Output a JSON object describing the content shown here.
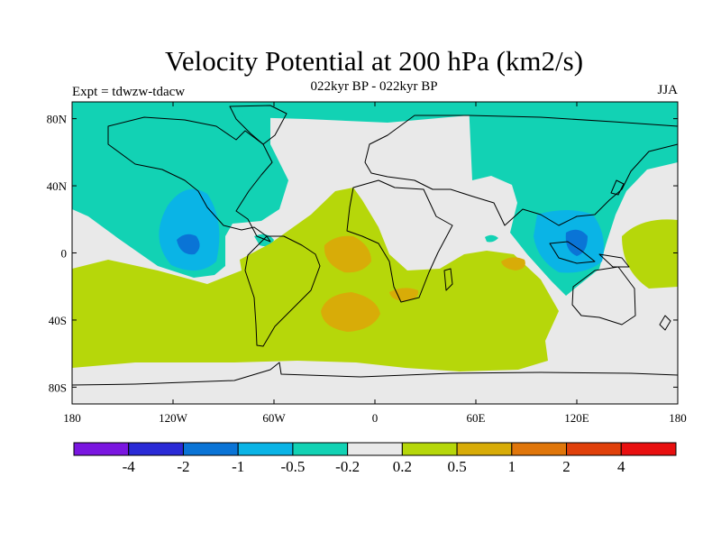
{
  "title": "Velocity Potential at 200 hPa (km2/s)",
  "subtitle": "022kyr BP - 022kyr BP",
  "left_label": "Expt = tdwzw-tdacw",
  "right_label": "JJA",
  "axes": {
    "x_ticks": [
      "180",
      "120W",
      "60W",
      "0",
      "60E",
      "120E",
      "180"
    ],
    "y_ticks": [
      "80N",
      "40N",
      "0",
      "40S",
      "80S"
    ]
  },
  "colorbar": {
    "labels": [
      "-4",
      "-2",
      "-1",
      "-0.5",
      "-0.2",
      "0.2",
      "0.5",
      "1",
      "2",
      "4"
    ],
    "colors": [
      "#7a16e0",
      "#2a2ad6",
      "#0a74d6",
      "#0ab4e6",
      "#12d2b4",
      "#e9e9e9",
      "#b6d70a",
      "#d8ac08",
      "#e0760a",
      "#e0400a",
      "#e80f0f"
    ]
  },
  "chart_data": {
    "type": "heatmap",
    "projection": "cylindrical-equidistant",
    "xlim": [
      -180,
      180
    ],
    "ylim": [
      -90,
      90
    ],
    "x_tick_values": [
      -180,
      -120,
      -60,
      0,
      60,
      120,
      180
    ],
    "y_tick_values": [
      80,
      40,
      0,
      -40,
      -80
    ],
    "levels": [
      -4,
      -2,
      -1,
      -0.5,
      -0.2,
      0.2,
      0.5,
      1,
      2,
      4
    ],
    "background_class": "-0.2 to 0.2"
  }
}
